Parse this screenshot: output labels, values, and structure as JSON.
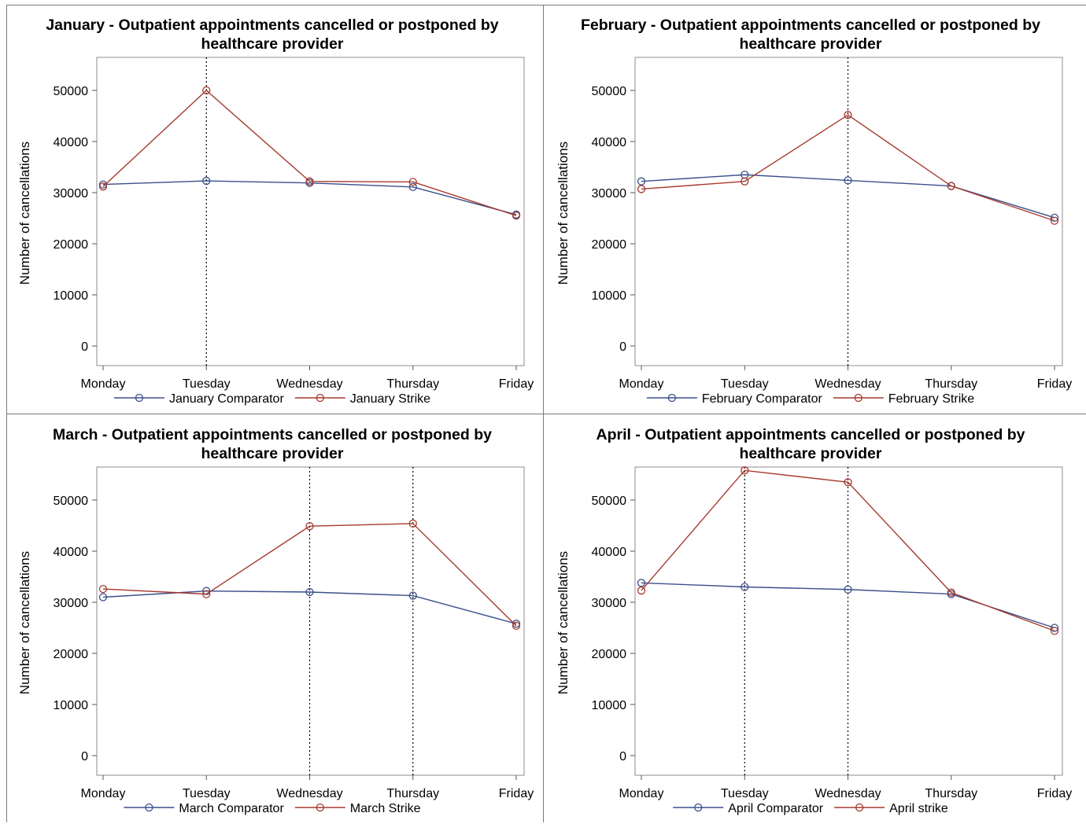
{
  "chart_data": [
    {
      "type": "line",
      "title": "January - Outpatient appointments cancelled or postponed by healthcare provider",
      "title_lines": [
        "January - Outpatient appointments cancelled or postponed by",
        "healthcare provider"
      ],
      "ylabel": "Number of cancellations",
      "xlabel": "",
      "categories": [
        "Monday",
        "Tuesday",
        "Wednesday",
        "Thursday",
        "Friday"
      ],
      "ylim": [
        0,
        56500
      ],
      "yticks": [
        0,
        10000,
        20000,
        30000,
        40000,
        50000
      ],
      "strike_days": [
        "Tuesday"
      ],
      "grid": false,
      "legend_position": "bottom",
      "series": [
        {
          "name": "January Comparator",
          "color": "#3b4f8c",
          "values": [
            31600,
            32300,
            31900,
            31100,
            25700
          ]
        },
        {
          "name": "January Strike",
          "color": "#a63a2e",
          "values": [
            31200,
            50000,
            32200,
            32100,
            25500
          ]
        }
      ]
    },
    {
      "type": "line",
      "title": "February - Outpatient appointments cancelled or postponed by healthcare provider",
      "title_lines": [
        "February - Outpatient appointments cancelled or postponed by",
        "healthcare provider"
      ],
      "ylabel": "Number of cancellations",
      "xlabel": "",
      "categories": [
        "Monday",
        "Tuesday",
        "Wednesday",
        "Thursday",
        "Friday"
      ],
      "ylim": [
        0,
        56500
      ],
      "yticks": [
        0,
        10000,
        20000,
        30000,
        40000,
        50000
      ],
      "strike_days": [
        "Wednesday"
      ],
      "grid": false,
      "legend_position": "bottom",
      "series": [
        {
          "name": "February Comparator",
          "color": "#3b4f8c",
          "values": [
            32200,
            33500,
            32400,
            31300,
            25100
          ]
        },
        {
          "name": "February Strike",
          "color": "#a63a2e",
          "values": [
            30700,
            32200,
            45200,
            31300,
            24500
          ]
        }
      ]
    },
    {
      "type": "line",
      "title": "March - Outpatient appointments cancelled or postponed by healthcare provider",
      "title_lines": [
        "March - Outpatient appointments cancelled or postponed by",
        "healthcare provider"
      ],
      "ylabel": "Number of cancellations",
      "xlabel": "",
      "categories": [
        "Monday",
        "Tuesday",
        "Wednesday",
        "Thursday",
        "Friday"
      ],
      "ylim": [
        0,
        56500
      ],
      "yticks": [
        0,
        10000,
        20000,
        30000,
        40000,
        50000
      ],
      "strike_days": [
        "Wednesday",
        "Thursday"
      ],
      "grid": false,
      "legend_position": "bottom",
      "series": [
        {
          "name": "March Comparator",
          "color": "#3b4f8c",
          "values": [
            31000,
            32200,
            32000,
            31300,
            25800
          ]
        },
        {
          "name": "March Strike",
          "color": "#a63a2e",
          "values": [
            32600,
            31600,
            44900,
            45400,
            25400
          ]
        }
      ]
    },
    {
      "type": "line",
      "title": "April - Outpatient appointments cancelled or postponed by healthcare provider",
      "title_lines": [
        "April - Outpatient appointments cancelled or postponed by",
        "healthcare provider"
      ],
      "ylabel": "Number of cancellations",
      "xlabel": "",
      "categories": [
        "Monday",
        "Tuesday",
        "Wednesday",
        "Thursday",
        "Friday"
      ],
      "ylim": [
        0,
        56500
      ],
      "yticks": [
        0,
        10000,
        20000,
        30000,
        40000,
        50000
      ],
      "strike_days": [
        "Tuesday",
        "Wednesday"
      ],
      "grid": false,
      "legend_position": "bottom",
      "series": [
        {
          "name": "April Comparator",
          "color": "#3b4f8c",
          "values": [
            33800,
            33000,
            32500,
            31600,
            25000
          ]
        },
        {
          "name": "April strike",
          "color": "#a63a2e",
          "values": [
            32300,
            55800,
            53500,
            31900,
            24400
          ]
        }
      ]
    }
  ]
}
